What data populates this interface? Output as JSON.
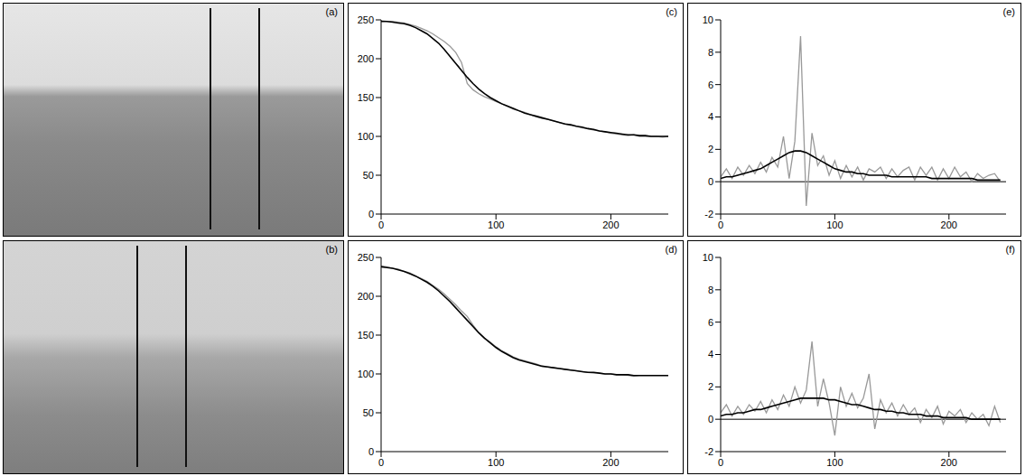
{
  "images": [
    {
      "label": "(a)"
    },
    {
      "label": "(b)"
    }
  ],
  "chart_data": [
    {
      "type": "line",
      "title": "(c)",
      "grid": false,
      "xlim": [
        0,
        250
      ],
      "xticks": [
        0,
        100,
        200
      ],
      "ylim": [
        0,
        250
      ],
      "yticks": [
        0,
        50,
        100,
        150,
        200,
        250
      ],
      "x": [
        0,
        5,
        10,
        15,
        20,
        25,
        30,
        35,
        40,
        45,
        50,
        55,
        60,
        65,
        70,
        75,
        80,
        85,
        90,
        95,
        100,
        105,
        110,
        115,
        120,
        125,
        130,
        135,
        140,
        145,
        150,
        155,
        160,
        165,
        170,
        175,
        180,
        185,
        190,
        195,
        200,
        205,
        210,
        215,
        220,
        225,
        230,
        235,
        240,
        245,
        250
      ],
      "series": [
        {
          "color": "#999999",
          "values": [
            249,
            248,
            248,
            247,
            246,
            244,
            242,
            239,
            236,
            232,
            227,
            222,
            216,
            208,
            195,
            168,
            160,
            155,
            151,
            148,
            145,
            142,
            139,
            135,
            133,
            131,
            128,
            125,
            123,
            122,
            120,
            118,
            116,
            114,
            113,
            111,
            110,
            108,
            107,
            106,
            104,
            103,
            102,
            101,
            102,
            100,
            100,
            100,
            100,
            99,
            100
          ]
        },
        {
          "color": "#000000",
          "values": [
            248,
            248,
            247,
            246,
            245,
            243,
            240,
            236,
            232,
            226,
            220,
            212,
            203,
            194,
            185,
            176,
            168,
            161,
            155,
            150,
            146,
            142,
            139,
            136,
            133,
            130,
            128,
            126,
            124,
            122,
            120,
            118,
            116,
            115,
            113,
            112,
            110,
            109,
            107,
            106,
            105,
            104,
            103,
            102,
            102,
            101,
            101,
            100,
            100,
            100,
            100
          ]
        }
      ]
    },
    {
      "type": "line",
      "title": "(d)",
      "grid": false,
      "xlim": [
        0,
        250
      ],
      "xticks": [
        0,
        100,
        200
      ],
      "ylim": [
        0,
        250
      ],
      "yticks": [
        0,
        50,
        100,
        150,
        200,
        250
      ],
      "x": [
        0,
        5,
        10,
        15,
        20,
        25,
        30,
        35,
        40,
        45,
        50,
        55,
        60,
        65,
        70,
        75,
        80,
        85,
        90,
        95,
        100,
        105,
        110,
        115,
        120,
        125,
        130,
        135,
        140,
        145,
        150,
        155,
        160,
        165,
        170,
        175,
        180,
        185,
        190,
        195,
        200,
        205,
        210,
        215,
        220,
        225,
        230,
        235,
        240,
        245,
        250
      ],
      "series": [
        {
          "color": "#999999",
          "values": [
            239,
            238,
            236,
            235,
            232,
            230,
            226,
            223,
            219,
            214,
            209,
            203,
            196,
            189,
            181,
            174,
            163,
            153,
            146,
            141,
            135,
            130,
            126,
            122,
            119,
            117,
            115,
            113,
            110,
            109,
            108,
            107,
            106,
            105,
            104,
            103,
            102,
            101,
            101,
            100,
            100,
            99,
            99,
            98,
            97,
            98,
            98,
            98,
            98,
            98,
            98
          ]
        },
        {
          "color": "#000000",
          "values": [
            238,
            237,
            236,
            234,
            232,
            229,
            226,
            222,
            218,
            213,
            207,
            200,
            193,
            185,
            177,
            169,
            161,
            153,
            146,
            140,
            134,
            129,
            125,
            121,
            118,
            116,
            114,
            112,
            110,
            109,
            108,
            107,
            106,
            105,
            104,
            103,
            102,
            102,
            101,
            100,
            100,
            99,
            99,
            99,
            98,
            98,
            98,
            98,
            98,
            98,
            98
          ]
        }
      ]
    },
    {
      "type": "line",
      "title": "(e)",
      "grid": false,
      "xlim": [
        0,
        250
      ],
      "xticks": [
        0,
        100,
        200
      ],
      "ylim": [
        -2,
        10
      ],
      "yticks": [
        -2,
        0,
        2,
        4,
        6,
        8,
        10
      ],
      "x": [
        0,
        5,
        10,
        15,
        20,
        25,
        30,
        35,
        40,
        45,
        50,
        55,
        60,
        65,
        70,
        75,
        80,
        85,
        90,
        95,
        100,
        105,
        110,
        115,
        120,
        125,
        130,
        135,
        140,
        145,
        150,
        155,
        160,
        165,
        170,
        175,
        180,
        185,
        190,
        195,
        200,
        205,
        210,
        215,
        220,
        225,
        230,
        235,
        240,
        245,
        250
      ],
      "series": [
        {
          "color": "#999999",
          "values": [
            0.3,
            0.8,
            0.2,
            0.9,
            0.4,
            1.0,
            0.5,
            1.2,
            0.6,
            1.5,
            0.9,
            2.8,
            0.2,
            2.5,
            9.0,
            -1.5,
            3.0,
            1.0,
            1.6,
            0.4,
            1.3,
            0.2,
            1.0,
            0.3,
            0.9,
            0.1,
            0.8,
            0.6,
            0.9,
            0.2,
            0.8,
            0.3,
            0.7,
            0.9,
            0.1,
            0.9,
            0.4,
            0.9,
            0.1,
            0.8,
            0.2,
            0.9,
            0.3,
            0.6,
            0.0,
            0.5,
            0.2,
            0.4,
            0.5,
            0.0,
            null
          ]
        },
        {
          "color": "#000000",
          "values": [
            0.2,
            0.3,
            0.3,
            0.4,
            0.5,
            0.6,
            0.7,
            0.8,
            1.0,
            1.2,
            1.4,
            1.6,
            1.8,
            1.9,
            1.9,
            1.8,
            1.6,
            1.4,
            1.2,
            1.0,
            0.8,
            0.7,
            0.6,
            0.6,
            0.5,
            0.5,
            0.4,
            0.4,
            0.4,
            0.4,
            0.3,
            0.3,
            0.3,
            0.3,
            0.3,
            0.3,
            0.3,
            0.2,
            0.2,
            0.2,
            0.2,
            0.2,
            0.2,
            0.2,
            0.2,
            0.1,
            0.1,
            0.1,
            0.1,
            0.1,
            null
          ]
        }
      ]
    },
    {
      "type": "line",
      "title": "(f)",
      "grid": false,
      "xlim": [
        0,
        250
      ],
      "xticks": [
        0,
        100,
        200
      ],
      "ylim": [
        -2,
        10
      ],
      "yticks": [
        -2,
        0,
        2,
        4,
        6,
        8,
        10
      ],
      "x": [
        0,
        5,
        10,
        15,
        20,
        25,
        30,
        35,
        40,
        45,
        50,
        55,
        60,
        65,
        70,
        75,
        80,
        85,
        90,
        95,
        100,
        105,
        110,
        115,
        120,
        125,
        130,
        135,
        140,
        145,
        150,
        155,
        160,
        165,
        170,
        175,
        180,
        185,
        190,
        195,
        200,
        205,
        210,
        215,
        220,
        225,
        230,
        235,
        240,
        245,
        250
      ],
      "series": [
        {
          "color": "#999999",
          "values": [
            0.4,
            0.9,
            0.2,
            0.8,
            0.3,
            0.9,
            0.5,
            1.1,
            0.4,
            1.2,
            0.6,
            1.5,
            0.8,
            2.0,
            1.0,
            1.8,
            4.8,
            0.8,
            2.5,
            1.0,
            -1.0,
            2.0,
            0.8,
            1.6,
            0.7,
            1.3,
            2.8,
            -0.6,
            1.2,
            0.4,
            1.0,
            0.2,
            0.9,
            0.3,
            0.7,
            -0.2,
            0.6,
            0.1,
            0.8,
            -0.3,
            0.5,
            0.2,
            0.6,
            -0.2,
            0.4,
            0.0,
            0.3,
            -0.4,
            0.8,
            -0.2,
            null
          ]
        },
        {
          "color": "#000000",
          "values": [
            0.2,
            0.3,
            0.3,
            0.4,
            0.4,
            0.5,
            0.6,
            0.6,
            0.7,
            0.8,
            0.9,
            1.0,
            1.1,
            1.2,
            1.3,
            1.3,
            1.3,
            1.3,
            1.3,
            1.2,
            1.2,
            1.1,
            1.0,
            0.9,
            0.9,
            0.8,
            0.7,
            0.6,
            0.6,
            0.5,
            0.5,
            0.4,
            0.4,
            0.3,
            0.3,
            0.3,
            0.2,
            0.2,
            0.2,
            0.1,
            0.1,
            0.1,
            0.1,
            0.1,
            0.0,
            0.0,
            0.0,
            0.0,
            0.0,
            0.0,
            null
          ]
        }
      ]
    }
  ]
}
